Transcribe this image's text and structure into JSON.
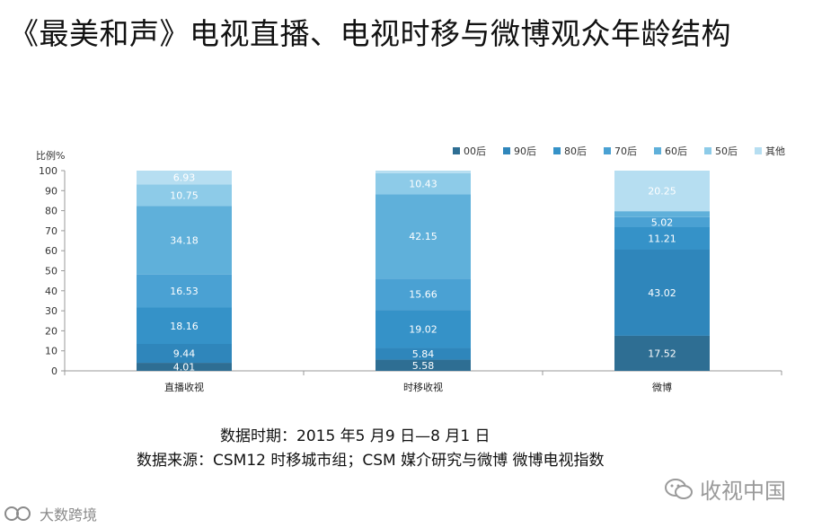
{
  "header": {
    "title": "《最美和声》电视直播、电视时移与微博观众年龄结构"
  },
  "notes": {
    "period": "数据时期：2015 年5 月9 日—8 月1 日",
    "source": "数据来源：CSM12 时移城市组；CSM 媒介研究与微博 微博电视指数"
  },
  "watermarks": {
    "right_text": "收视中国",
    "right_icon": "wechat-icon",
    "left_text": "大数跨境",
    "left_icon": "logo-icon"
  },
  "chart_data": {
    "type": "bar",
    "stacked": true,
    "title": "",
    "xlabel": "",
    "ylabel": "比例%",
    "ylim": [
      0,
      100
    ],
    "yticks": [
      0,
      10,
      20,
      30,
      40,
      50,
      60,
      70,
      80,
      90,
      100
    ],
    "grid": false,
    "legend_position": "top-right",
    "categories": [
      "直播收视",
      "时移收视",
      "微博"
    ],
    "series": [
      {
        "name": "00后",
        "color": "#2e6e93",
        "values": [
          4.01,
          5.58,
          17.52
        ],
        "labels": [
          "4.01",
          "5.58",
          "17.52"
        ]
      },
      {
        "name": "90后",
        "color": "#2f86bb",
        "values": [
          9.44,
          5.84,
          43.02
        ],
        "labels": [
          "9.44",
          "5.84",
          "43.02"
        ]
      },
      {
        "name": "80后",
        "color": "#3592c8",
        "values": [
          18.16,
          19.02,
          11.21
        ],
        "labels": [
          "18.16",
          "19.02",
          "11.21"
        ]
      },
      {
        "name": "70后",
        "color": "#4aa1d3",
        "values": [
          16.53,
          15.66,
          5.02
        ],
        "labels": [
          "16.53",
          "15.66",
          "5.02"
        ]
      },
      {
        "name": "60后",
        "color": "#5fb0da",
        "values": [
          34.18,
          42.15,
          2.98
        ],
        "labels": [
          "34.18",
          "42.15",
          ""
        ]
      },
      {
        "name": "50后",
        "color": "#8dcbe8",
        "values": [
          10.75,
          10.43,
          0.0
        ],
        "labels": [
          "10.75",
          "10.43",
          ""
        ]
      },
      {
        "name": "其他",
        "color": "#b6def1",
        "values": [
          6.93,
          1.32,
          20.25
        ],
        "labels": [
          "6.93",
          "",
          "20.25"
        ]
      }
    ]
  }
}
